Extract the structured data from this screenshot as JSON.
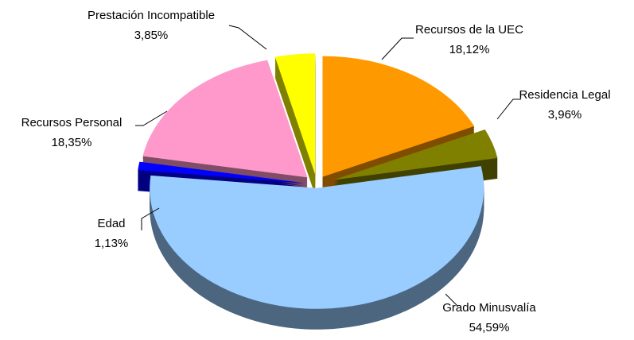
{
  "chart_data": {
    "type": "pie",
    "categories": [
      "Recursos de la UEC",
      "Residencia Legal",
      "Grado Minusvalía",
      "Edad",
      "Recursos Personal",
      "Prestación Incompatible"
    ],
    "values": [
      18.12,
      3.96,
      54.59,
      1.13,
      18.35,
      3.85
    ],
    "value_labels": [
      "18,12%",
      "3,96%",
      "54,59%",
      "1,13%",
      "18,35%",
      "3,85%"
    ],
    "colors": [
      "#ff9900",
      "#808000",
      "#99ccff",
      "#0000ff",
      "#ff99cc",
      "#ffff00"
    ]
  }
}
